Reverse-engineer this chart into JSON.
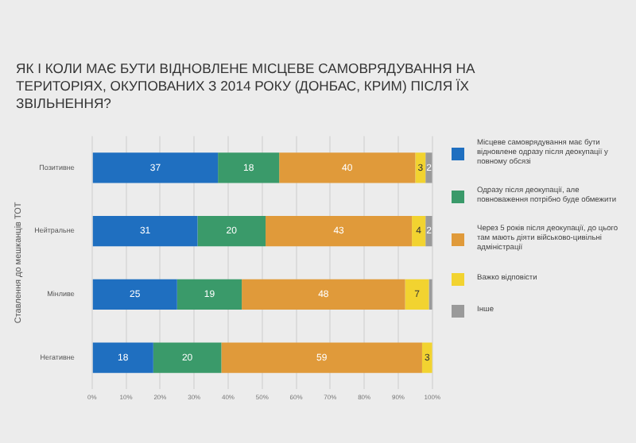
{
  "chart_data": {
    "type": "bar",
    "orientation": "horizontal",
    "stacked": true,
    "title": "ЯК І КОЛИ МАЄ БУТИ ВІДНОВЛЕНЕ МІСЦЕВЕ САМОВРЯДУВАННЯ НА ТЕРИТОРІЯХ, ОКУПОВАНИХ З 2014 РОКУ (ДОНБАС, КРИМ) ПІСЛЯ ЇХ ЗВІЛЬНЕННЯ?",
    "ylabel": "Ставлення до мешканців ТОТ",
    "categories": [
      "Позитивне",
      "Нейтральне",
      "Мінливе",
      "Негативне"
    ],
    "xlim": [
      0,
      100
    ],
    "xticks": [
      {
        "value": 0,
        "label": "0%"
      },
      {
        "value": 10,
        "label": "10%"
      },
      {
        "value": 20,
        "label": "20%"
      },
      {
        "value": 30,
        "label": "30%"
      },
      {
        "value": 40,
        "label": "40%"
      },
      {
        "value": 50,
        "label": "50%"
      },
      {
        "value": 60,
        "label": "60%"
      },
      {
        "value": 70,
        "label": "70%"
      },
      {
        "value": 80,
        "label": "80%"
      },
      {
        "value": 90,
        "label": "90%"
      },
      {
        "value": 100,
        "label": "100%"
      }
    ],
    "grid": "x",
    "legend": "right",
    "series": [
      {
        "name": "Місцеве самоврядування має бути відновлене одразу після деокупації у повному обсязі",
        "color": "#1f6fc0",
        "values": [
          37,
          31,
          25,
          18
        ],
        "value_labels": [
          "37",
          "31",
          "25",
          "18"
        ]
      },
      {
        "name": "Одразу після деокупації, але повноваження потрібно буде обмежити",
        "color": "#3a9a6a",
        "values": [
          18,
          20,
          19,
          20
        ],
        "value_labels": [
          "18",
          "20",
          "19",
          "20"
        ]
      },
      {
        "name": "Через 5 років після деокупації, до цього там мають діяти військово-цивільні адміністрації",
        "color": "#e09a3a",
        "values": [
          40,
          43,
          48,
          59
        ],
        "value_labels": [
          "40",
          "43",
          "48",
          "59"
        ]
      },
      {
        "name": "Важко відповісти",
        "color": "#f2d330",
        "values": [
          3,
          4,
          7,
          3
        ],
        "value_labels": [
          "3",
          "4",
          "7",
          "3"
        ]
      },
      {
        "name": "Інше",
        "color": "#9a9a9a",
        "values": [
          2,
          2,
          1,
          null
        ],
        "value_labels": [
          "2",
          "2",
          null,
          null
        ]
      }
    ]
  }
}
